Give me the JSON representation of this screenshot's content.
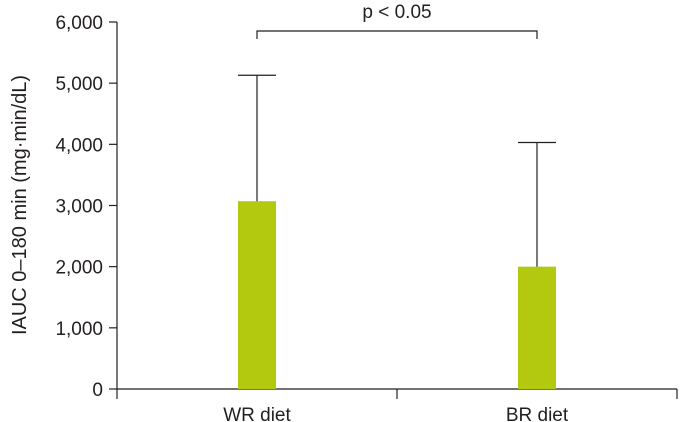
{
  "chart_data": {
    "type": "bar",
    "title": "",
    "xlabel": "",
    "ylabel": "IAUC 0–180 min (mg·min/dL)",
    "categories": [
      "WR diet",
      "BR diet"
    ],
    "values": [
      3070,
      2000
    ],
    "error_upper": [
      5130,
      4030
    ],
    "ylim": [
      0,
      6000
    ],
    "yticks": [
      0,
      1000,
      2000,
      3000,
      4000,
      5000,
      6000
    ],
    "ytick_labels": [
      "0",
      "1,000",
      "2,000",
      "3,000",
      "4,000",
      "5,000",
      "6,000"
    ],
    "grid": false,
    "bar_color": "#b2c90f",
    "significance": {
      "label": "p < 0.05",
      "between": [
        "WR diet",
        "BR diet"
      ]
    }
  }
}
